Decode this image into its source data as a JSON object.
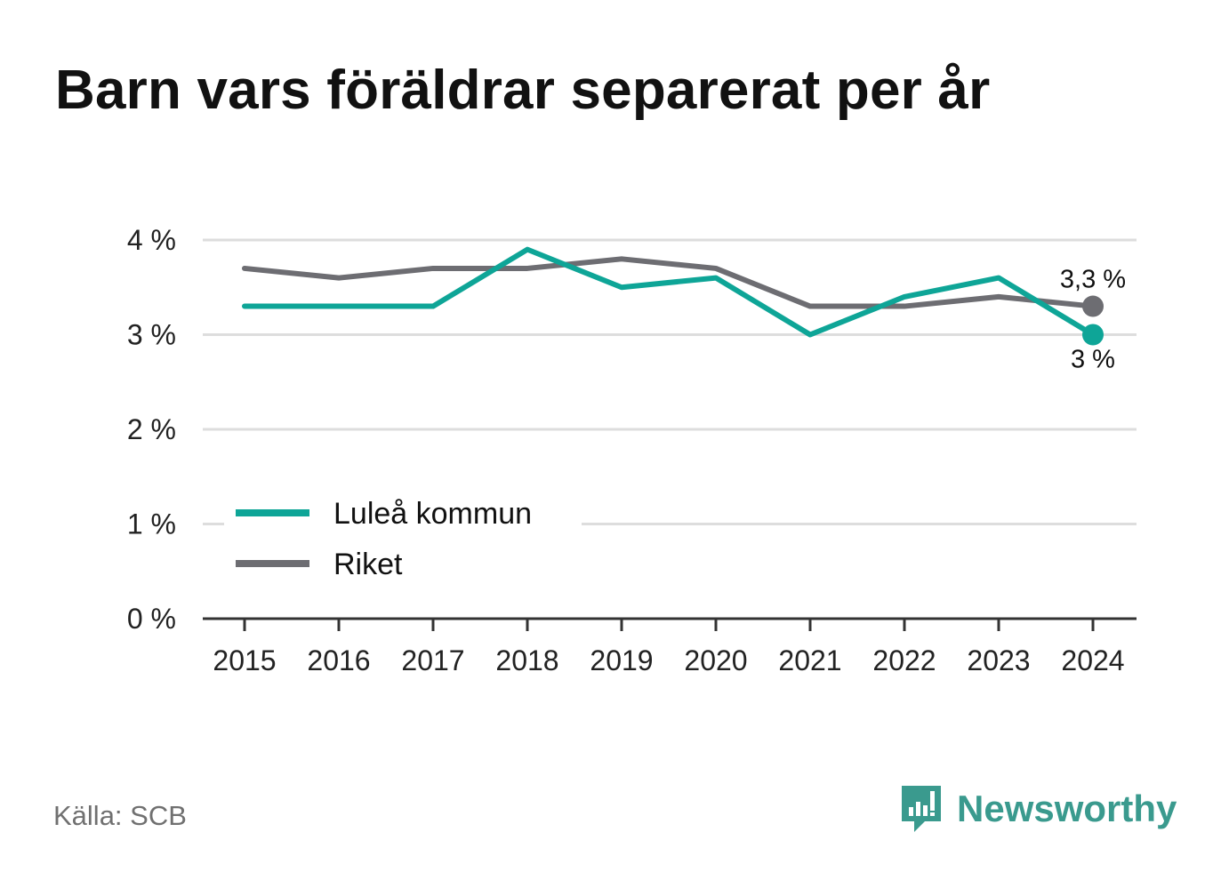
{
  "title": "Barn vars föräldrar separerat per år",
  "source": "Källa: SCB",
  "brand": {
    "name": "Newsworthy",
    "logo_icon": "bar-chart-speech-bubble-icon"
  },
  "colors": {
    "lulea": "#0ea597",
    "riket": "#6d6d72",
    "grid": "#dddddd",
    "axis": "#333333"
  },
  "chart_data": {
    "type": "line",
    "title": "Barn vars föräldrar separerat per år",
    "x": [
      "2015",
      "2016",
      "2017",
      "2018",
      "2019",
      "2020",
      "2021",
      "2022",
      "2023",
      "2024"
    ],
    "y_ticks": [
      "0 %",
      "1 %",
      "2 %",
      "3 %",
      "4 %"
    ],
    "ylim": [
      0,
      4
    ],
    "grid": true,
    "legend_position": "bottom-left",
    "series": [
      {
        "name": "Luleå kommun",
        "values": [
          3.3,
          3.3,
          3.3,
          3.9,
          3.5,
          3.6,
          3.0,
          3.4,
          3.6,
          3.0
        ],
        "end_label": "3 %"
      },
      {
        "name": "Riket",
        "values": [
          3.7,
          3.6,
          3.7,
          3.7,
          3.8,
          3.7,
          3.3,
          3.3,
          3.4,
          3.3
        ],
        "end_label": "3,3 %"
      }
    ]
  }
}
